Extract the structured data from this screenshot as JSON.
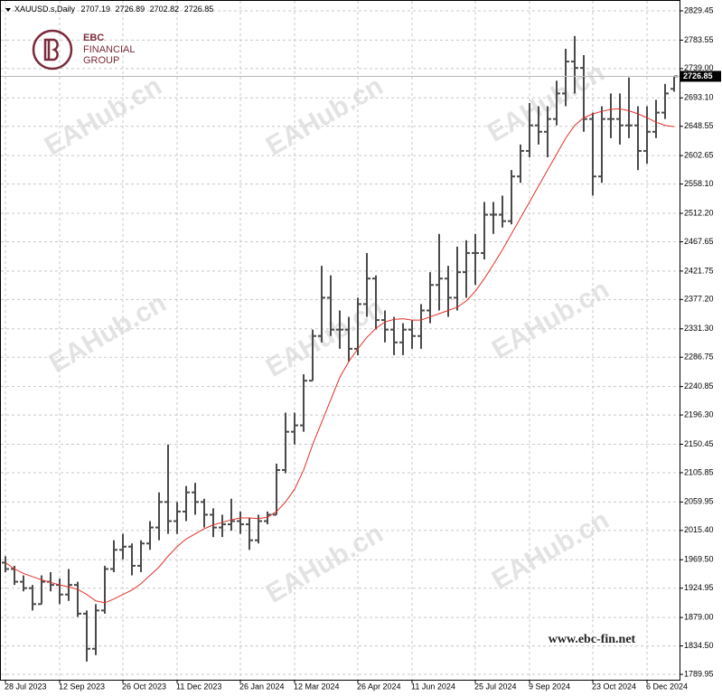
{
  "chart_data": {
    "type": "ohlc",
    "title": "XAUUSD.s,Daily",
    "categories": [
      "28 Jul 2023",
      null,
      null,
      null,
      null,
      null,
      "12 Sep 2023",
      null,
      null,
      null,
      null,
      null,
      null,
      "26 Oct 2023",
      null,
      null,
      null,
      null,
      null,
      "11 Dec 2023",
      null,
      null,
      null,
      null,
      null,
      null,
      "26 Jan 2024",
      null,
      null,
      null,
      null,
      null,
      "12 Mar 2024",
      null,
      null,
      null,
      null,
      null,
      null,
      "26 Apr 2024",
      null,
      null,
      null,
      null,
      null,
      "11 Jun 2024",
      null,
      null,
      null,
      null,
      null,
      null,
      "25 Jul 2024",
      null,
      null,
      null,
      null,
      null,
      "9 Sep 2024",
      null,
      null,
      null,
      null,
      null,
      null,
      "23 Oct 2024",
      null,
      null,
      null,
      null,
      null,
      "6 Dec 2024",
      null,
      null,
      null
    ],
    "open": [
      1965,
      1955,
      1935,
      1925,
      1900,
      1935,
      1930,
      1915,
      1930,
      1885,
      1830,
      1890,
      1955,
      1985,
      1990,
      1960,
      1995,
      2020,
      2060,
      2030,
      2045,
      2075,
      2060,
      2040,
      2020,
      2025,
      2030,
      2025,
      2000,
      2030,
      2040,
      2110,
      2170,
      2180,
      2250,
      2320,
      2380,
      2330,
      2330,
      2300,
      2370,
      2410,
      2345,
      2330,
      2310,
      2330,
      2320,
      2360,
      2400,
      2410,
      2380,
      2420,
      2450,
      2450,
      2510,
      2510,
      2500,
      2570,
      2610,
      2650,
      2640,
      2660,
      2700,
      2750,
      2740,
      2660,
      2570,
      2660,
      2660,
      2650,
      2650,
      2610,
      2640,
      2670,
      2707.19
    ],
    "high": [
      1975,
      1960,
      1945,
      1930,
      1945,
      1950,
      1940,
      1955,
      1935,
      1890,
      1900,
      1960,
      2000,
      2010,
      1995,
      2000,
      2030,
      2075,
      2150,
      2060,
      2085,
      2090,
      2065,
      2050,
      2040,
      2065,
      2045,
      2035,
      2040,
      2045,
      2120,
      2200,
      2200,
      2260,
      2330,
      2430,
      2415,
      2360,
      2350,
      2380,
      2450,
      2415,
      2360,
      2350,
      2340,
      2345,
      2370,
      2420,
      2480,
      2430,
      2460,
      2470,
      2480,
      2530,
      2530,
      2540,
      2580,
      2620,
      2685,
      2680,
      2680,
      2720,
      2770,
      2790,
      2760,
      2670,
      2680,
      2700,
      2700,
      2725,
      2680,
      2680,
      2690,
      2715,
      2726.89
    ],
    "low": [
      1950,
      1930,
      1920,
      1890,
      1900,
      1920,
      1900,
      1905,
      1880,
      1810,
      1820,
      1885,
      1950,
      1970,
      1945,
      1950,
      1985,
      2000,
      2010,
      2010,
      2030,
      2040,
      2020,
      2005,
      2005,
      2015,
      2010,
      1985,
      1995,
      2025,
      2040,
      2105,
      2150,
      2170,
      2250,
      2310,
      2320,
      2300,
      2280,
      2290,
      2350,
      2330,
      2310,
      2290,
      2290,
      2300,
      2300,
      2340,
      2360,
      2350,
      2360,
      2380,
      2400,
      2440,
      2480,
      2490,
      2495,
      2560,
      2600,
      2620,
      2600,
      2650,
      2680,
      2700,
      2640,
      2540,
      2560,
      2630,
      2620,
      2630,
      2580,
      2590,
      2630,
      2660,
      2702.82
    ],
    "close": [
      1955,
      1935,
      1925,
      1900,
      1935,
      1930,
      1915,
      1930,
      1885,
      1830,
      1890,
      1955,
      1985,
      1990,
      1960,
      1995,
      2020,
      2060,
      2030,
      2045,
      2075,
      2060,
      2040,
      2020,
      2025,
      2030,
      2025,
      2000,
      2030,
      2040,
      2110,
      2170,
      2180,
      2250,
      2320,
      2380,
      2330,
      2330,
      2300,
      2370,
      2410,
      2345,
      2330,
      2310,
      2330,
      2320,
      2360,
      2400,
      2410,
      2380,
      2420,
      2450,
      2450,
      2510,
      2510,
      2500,
      2570,
      2610,
      2650,
      2640,
      2660,
      2700,
      2750,
      2740,
      2660,
      2570,
      2660,
      2660,
      2650,
      2650,
      2610,
      2640,
      2670,
      2700,
      2726.85
    ],
    "color": "#4a4a4a",
    "ma": {
      "color": "#e0312a",
      "values": [
        1965,
        1955,
        1948,
        1943,
        1938,
        1934,
        1930,
        1927,
        1923,
        1915,
        1905,
        1902,
        1908,
        1915,
        1922,
        1932,
        1945,
        1958,
        1975,
        1990,
        2002,
        2010,
        2018,
        2024,
        2028,
        2032,
        2035,
        2035,
        2034,
        2036,
        2045,
        2060,
        2080,
        2110,
        2150,
        2185,
        2220,
        2255,
        2280,
        2300,
        2318,
        2332,
        2342,
        2346,
        2347,
        2345,
        2345,
        2350,
        2355,
        2360,
        2365,
        2375,
        2390,
        2410,
        2432,
        2455,
        2480,
        2505,
        2530,
        2555,
        2580,
        2605,
        2630,
        2650,
        2662,
        2668,
        2672,
        2675,
        2676,
        2673,
        2668,
        2662,
        2655,
        2650,
        2648
      ]
    },
    "ylim": [
      1781.5,
      2843.6
    ],
    "yticks": [
      1789.95,
      {
        "value": 1834.5,
        "label": "1834.50"
      },
      {
        "value": 1879,
        "label": "1879.00"
      },
      1924.95,
      {
        "value": 1969.5,
        "label": "1969.50"
      },
      {
        "value": 2015.4,
        "label": "2015.40"
      },
      2059.95,
      2105.85,
      2150.45,
      {
        "value": 2196.3,
        "label": "2196.30"
      },
      2240.85,
      2286.75,
      {
        "value": 2331.3,
        "label": "2331.30"
      },
      {
        "value": 2377.2,
        "label": "2377.20"
      },
      2421.75,
      2467.65,
      {
        "value": 2512.2,
        "label": "2512.20"
      },
      {
        "value": 2558.1,
        "label": "2558.10"
      },
      2602.65,
      2648.55,
      {
        "value": 2693.1,
        "label": "2693.10"
      },
      {
        "value": 2739,
        "label": "2739.00"
      },
      2783.55,
      2829.45
    ],
    "grid": true
  },
  "watermark": "EAHub.cn",
  "logo": [
    "EBC",
    "FINANCIAL",
    "GROUP"
  ],
  "website": "www.ebc-fin.net"
}
